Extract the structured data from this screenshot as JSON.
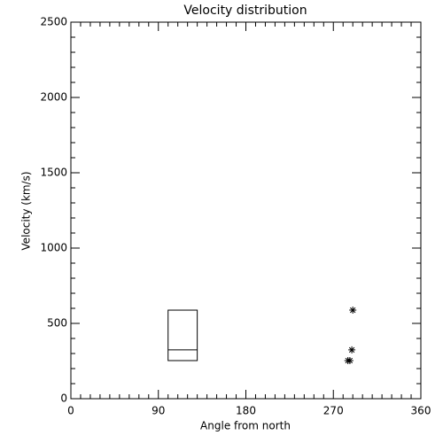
{
  "chart_data": {
    "type": "scatter",
    "title": "Velocity distribution",
    "x_label": "Angle from north",
    "y_label": "Velocity (km/s)",
    "xlim": [
      0,
      360
    ],
    "xticks": [
      0,
      90,
      180,
      270,
      360
    ],
    "x_minor": 9,
    "ylim": [
      0,
      2500
    ],
    "yticks": [
      0,
      500,
      1000,
      1500,
      2000,
      2500
    ],
    "y_minor": 5,
    "color": "#000000",
    "x": [
      290,
      289,
      285,
      287
    ],
    "y": [
      588,
      324,
      253,
      253
    ],
    "box": {
      "x": [
        100,
        130
      ],
      "low": 253,
      "median": 324,
      "high": 588
    }
  }
}
